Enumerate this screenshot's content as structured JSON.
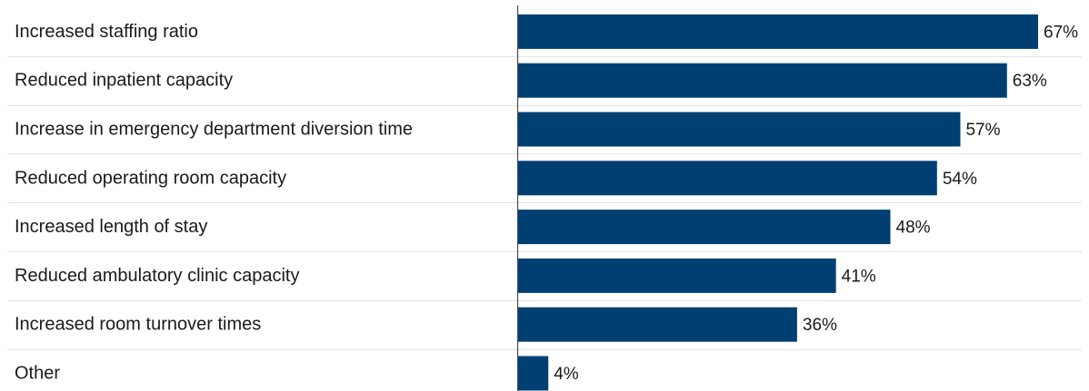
{
  "chart_data": {
    "type": "bar",
    "orientation": "horizontal",
    "categories": [
      "Increased staffing ratio",
      "Reduced inpatient capacity",
      "Increase in emergency department diversion time",
      "Reduced operating room capacity",
      "Increased length of stay",
      "Reduced ambulatory clinic capacity",
      "Increased room turnover times",
      "Other"
    ],
    "values": [
      67,
      63,
      57,
      54,
      48,
      41,
      36,
      4
    ],
    "value_labels": [
      "67%",
      "63%",
      "57%",
      "54%",
      "48%",
      "41%",
      "36%",
      "4%"
    ],
    "unit": "%",
    "xlim": [
      0,
      67
    ],
    "grid": false,
    "legend": "none",
    "colors": {
      "bar": "#003f72"
    }
  }
}
